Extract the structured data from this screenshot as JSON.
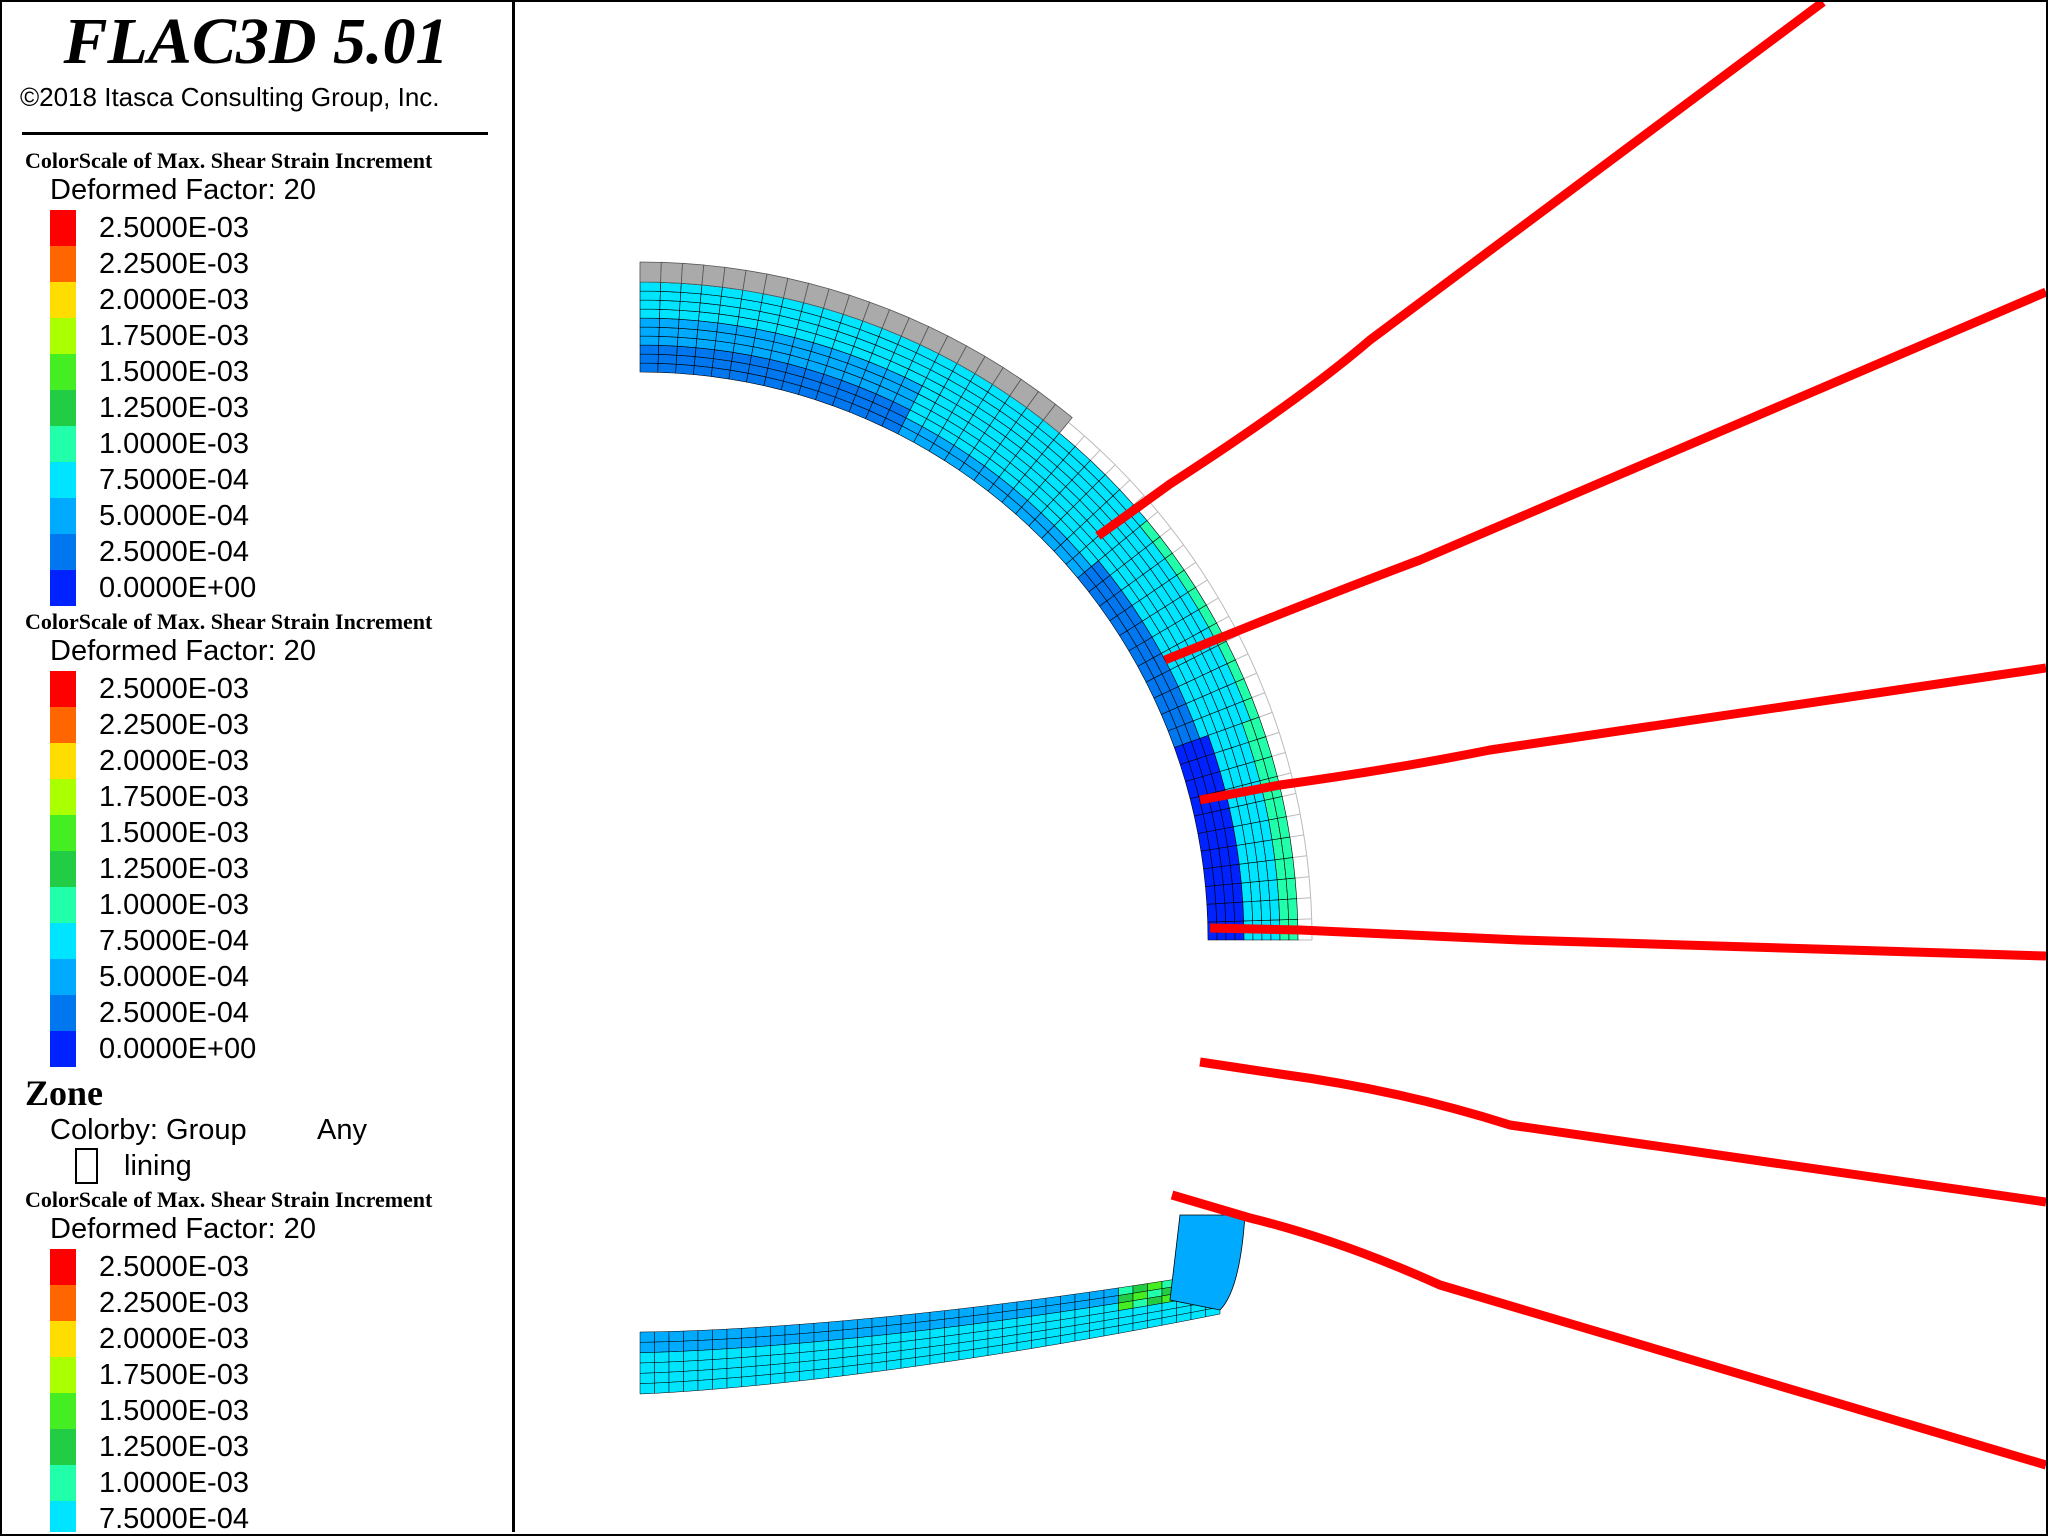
{
  "app": {
    "title": "FLAC3D 5.01",
    "copyright": "©2018 Itasca Consulting Group, Inc."
  },
  "legends": [
    {
      "title": "ColorScale of Max. Shear Strain Increment",
      "subtitle": "Deformed Factor: 20",
      "entries": [
        {
          "label": "2.5000E-03",
          "color": "#ff0000"
        },
        {
          "label": "2.2500E-03",
          "color": "#ff6600"
        },
        {
          "label": "2.0000E-03",
          "color": "#ffdd00"
        },
        {
          "label": "1.7500E-03",
          "color": "#aaff00"
        },
        {
          "label": "1.5000E-03",
          "color": "#44ee22"
        },
        {
          "label": "1.2500E-03",
          "color": "#22cc44"
        },
        {
          "label": "1.0000E-03",
          "color": "#22ffaa"
        },
        {
          "label": "7.5000E-04",
          "color": "#00e5ff"
        },
        {
          "label": "5.0000E-04",
          "color": "#00aaff"
        },
        {
          "label": "2.5000E-04",
          "color": "#0077ee"
        },
        {
          "label": "0.0000E+00",
          "color": "#0022ff"
        }
      ]
    },
    {
      "title": "ColorScale of Max. Shear Strain Increment",
      "subtitle": "Deformed Factor: 20",
      "entries": [
        {
          "label": "2.5000E-03",
          "color": "#ff0000"
        },
        {
          "label": "2.2500E-03",
          "color": "#ff6600"
        },
        {
          "label": "2.0000E-03",
          "color": "#ffdd00"
        },
        {
          "label": "1.7500E-03",
          "color": "#aaff00"
        },
        {
          "label": "1.5000E-03",
          "color": "#44ee22"
        },
        {
          "label": "1.2500E-03",
          "color": "#22cc44"
        },
        {
          "label": "1.0000E-03",
          "color": "#22ffaa"
        },
        {
          "label": "7.5000E-04",
          "color": "#00e5ff"
        },
        {
          "label": "5.0000E-04",
          "color": "#00aaff"
        },
        {
          "label": "2.5000E-04",
          "color": "#0077ee"
        },
        {
          "label": "0.0000E+00",
          "color": "#0022ff"
        }
      ]
    },
    {
      "title": "ColorScale of Max. Shear Strain Increment",
      "subtitle": "Deformed Factor: 20",
      "entries": [
        {
          "label": "2.5000E-03",
          "color": "#ff0000"
        },
        {
          "label": "2.2500E-03",
          "color": "#ff6600"
        },
        {
          "label": "2.0000E-03",
          "color": "#ffdd00"
        },
        {
          "label": "1.7500E-03",
          "color": "#aaff00"
        },
        {
          "label": "1.5000E-03",
          "color": "#44ee22"
        },
        {
          "label": "1.2500E-03",
          "color": "#22cc44"
        },
        {
          "label": "1.0000E-03",
          "color": "#22ffaa"
        },
        {
          "label": "7.5000E-04",
          "color": "#00e5ff"
        }
      ]
    }
  ],
  "zone": {
    "title": "Zone",
    "colorby": "Colorby: Group",
    "any": "Any",
    "group_label": "lining"
  },
  "colors": {
    "bolt": "#ff0000",
    "mesh_line": "#000000",
    "ghost_mesh": "#bbbbbb",
    "shell_grey": "#aaaaaa"
  }
}
